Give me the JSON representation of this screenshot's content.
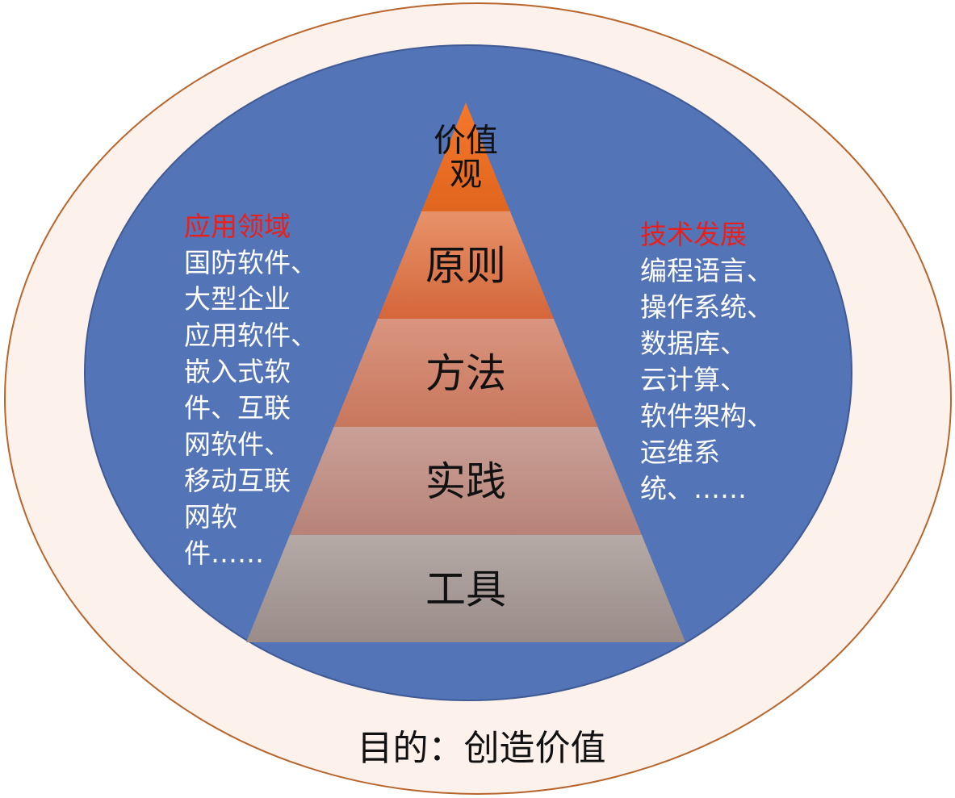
{
  "pyramid": {
    "levels": [
      {
        "label_lines": [
          "价值",
          "观"
        ],
        "color_top": "#f5782a",
        "color_bottom": "#e0651e"
      },
      {
        "label_lines": [
          "原则"
        ],
        "color_top": "#e8926a",
        "color_bottom": "#d4663a"
      },
      {
        "label_lines": [
          "方法"
        ],
        "color_top": "#d9957f",
        "color_bottom": "#c8775c"
      },
      {
        "label_lines": [
          "实践"
        ],
        "color_top": "#c9a097",
        "color_bottom": "#b88378"
      },
      {
        "label_lines": [
          "工具"
        ],
        "color_top": "#b5aaa6",
        "color_bottom": "#9a8c88"
      }
    ]
  },
  "left_panel": {
    "heading": "应用领域",
    "lines": [
      "国防软件、",
      "大型企业",
      "应用软件、",
      "嵌入式软",
      "件、互联",
      "网软件、",
      "移动互联",
      "网软",
      "件……"
    ]
  },
  "right_panel": {
    "heading": "技术发展",
    "lines": [
      "编程语言、",
      "操作系统、",
      "数据库、",
      "云计算、",
      "软件架构、",
      "运维系",
      "统、……"
    ]
  },
  "purpose": "目的：创造价值",
  "colors": {
    "outer_ellipse_fill": "#fdf1ec",
    "outer_ellipse_stroke": "#b8652c",
    "inner_ellipse_fill": "#5474b8",
    "inner_ellipse_stroke": "#3f5a94",
    "heading_red": "#e8201c"
  }
}
